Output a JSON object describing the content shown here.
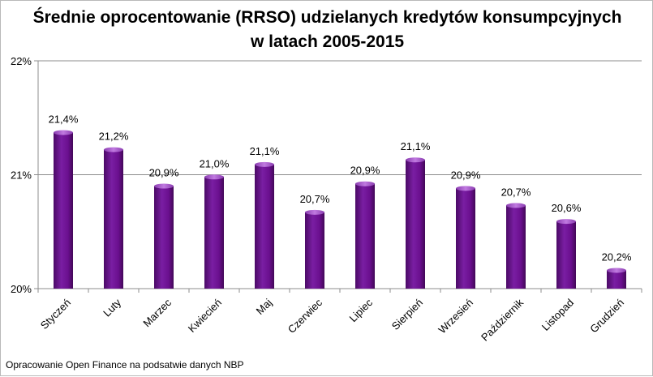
{
  "chart_data": {
    "type": "bar",
    "title_line1": "Średnie oprocentowanie (RRSO) udzielanych kredytów konsumpcyjnych",
    "title_line2": "w latach 2005-2015",
    "categories": [
      "Styczeń",
      "Luty",
      "Marzec",
      "Kwiecień",
      "Maj",
      "Czerwiec",
      "Lipiec",
      "Sierpień",
      "Wrzesień",
      "Październik",
      "Listopad",
      "Grudzień"
    ],
    "values": [
      21.37,
      21.22,
      20.9,
      20.98,
      21.09,
      20.67,
      20.92,
      21.13,
      20.88,
      20.73,
      20.59,
      20.16
    ],
    "data_labels": [
      "21,4%",
      "21,2%",
      "20,9%",
      "21,0%",
      "21,1%",
      "20,7%",
      "20,9%",
      "21,1%",
      "20,9%",
      "20,7%",
      "20,6%",
      "20,2%"
    ],
    "ylim": [
      20,
      22
    ],
    "yticks": [
      20,
      21,
      22
    ],
    "ytick_labels": [
      "20%",
      "21%",
      "22%"
    ],
    "grid": true,
    "legend": "none",
    "bar_color": "#6a0f8e",
    "bar_highlight": "#b05ad0"
  },
  "footer": {
    "source": "Opracowanie Open Finance na podsatwie danych NBP"
  }
}
